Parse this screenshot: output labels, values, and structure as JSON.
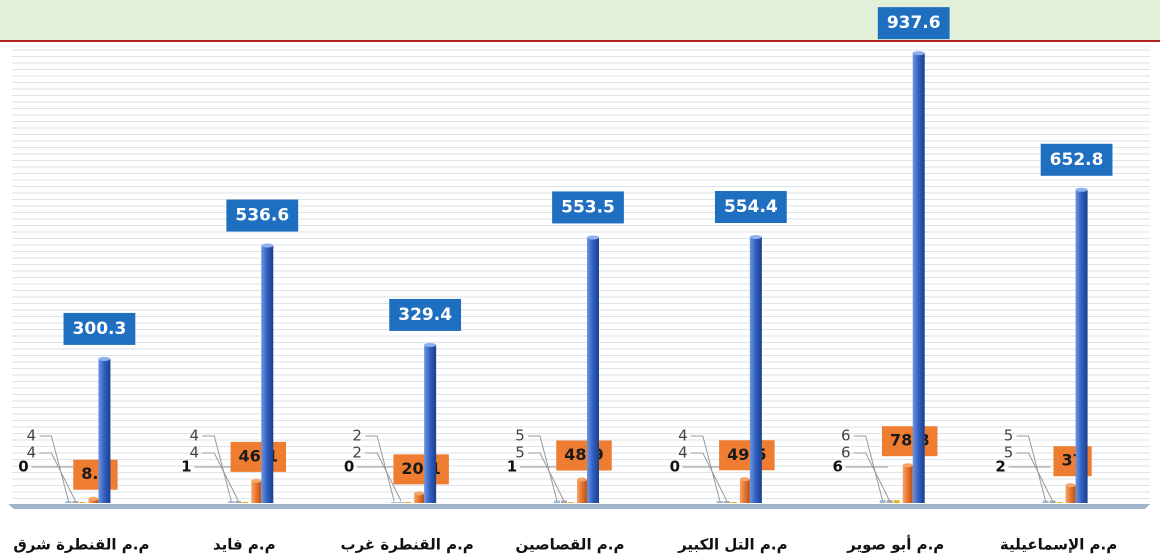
{
  "chart_data": {
    "type": "bar3d",
    "categories": [
      "م.م القنطرة شرق",
      "م.م فايد",
      "م.م القنطرة غرب",
      "م.م القصاصين",
      "م.م التل الكبير",
      "م.م أبو صوير",
      "م.م الإسماعيلية"
    ],
    "series": [
      {
        "color": "#9ab7d6",
        "values": [
          4,
          4,
          2,
          5,
          4,
          6,
          5
        ]
      },
      {
        "color": "#a6a6a6",
        "values": [
          4,
          4,
          2,
          5,
          4,
          6,
          5
        ]
      },
      {
        "color": "#e6b422",
        "values": [
          0,
          1,
          0,
          1,
          0,
          6,
          2
        ]
      },
      {
        "color": "#e8742a",
        "values": [
          8.9,
          46.1,
          20.1,
          48.9,
          49.5,
          78.8,
          37
        ]
      },
      {
        "color": "#2f5fc0",
        "values": [
          300.3,
          536.6,
          329.4,
          553.5,
          554.4,
          937.6,
          652.8
        ]
      }
    ],
    "ylim": [
      0,
      940
    ]
  }
}
